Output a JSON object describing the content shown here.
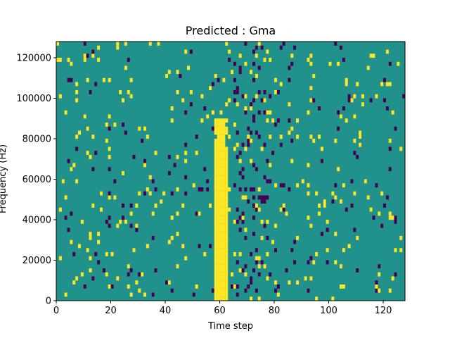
{
  "chart_data": {
    "type": "heatmap",
    "title": "Predicted : Gma",
    "xlabel": "Time step",
    "ylabel": "Frequency (Hz)",
    "xlim": [
      0,
      128
    ],
    "ylim": [
      0,
      128000
    ],
    "x_ticks": [
      0,
      20,
      40,
      60,
      80,
      100,
      120
    ],
    "y_ticks": [
      0,
      20000,
      40000,
      60000,
      80000,
      100000,
      120000
    ],
    "grid": false,
    "legend": "none",
    "colors": {
      "background": "#21918c",
      "high": "#fde725",
      "low": "#440154"
    },
    "n_time_steps": 128,
    "n_freq_bins": 64,
    "dense_high_band": {
      "time_start": 58,
      "time_end": 62,
      "freq_start": 0,
      "freq_end": 90000
    },
    "column_band": {
      "time_start": 64,
      "time_end": 77
    }
  }
}
